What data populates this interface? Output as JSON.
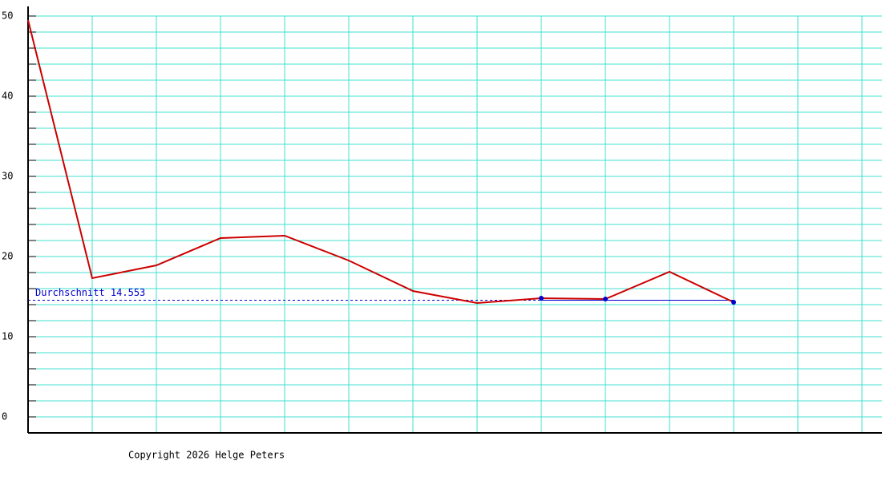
{
  "chart_data": {
    "type": "line",
    "x": [
      0,
      1,
      2,
      3,
      4,
      5,
      6,
      7,
      8,
      9,
      10,
      11
    ],
    "series": [
      {
        "color": "#cc0000",
        "values": [
          49.5,
          17.3,
          18.9,
          22.3,
          22.6,
          19.5,
          15.7,
          14.2,
          14.8,
          14.7,
          18.1,
          14.3
        ]
      },
      {
        "color": "#0000cc",
        "values": [
          null,
          null,
          null,
          null,
          null,
          null,
          null,
          null,
          14.8,
          14.7,
          null,
          14.3
        ],
        "markers_only": true
      }
    ],
    "average": 14.553,
    "average_label": "Durchschnitt 14.553",
    "average_color": "#0000cc",
    "xlim": [
      0,
      13.3125
    ],
    "xticks": [
      0,
      1,
      2,
      3,
      4,
      5,
      6,
      7,
      8,
      9,
      10,
      11,
      12,
      13
    ],
    "ylim": [
      -2,
      51.2
    ],
    "yticks": [
      0,
      10,
      20,
      30,
      40,
      50
    ],
    "minor_yticks": [
      0,
      2,
      4,
      6,
      8,
      10,
      12,
      14,
      16,
      18,
      20,
      22,
      24,
      26,
      28,
      30,
      32,
      34,
      36,
      38,
      40,
      42,
      44,
      46,
      48,
      50
    ],
    "grid": true,
    "grid_color": "#40e0d0",
    "footer": "Copyright 2026 Helge Peters"
  }
}
